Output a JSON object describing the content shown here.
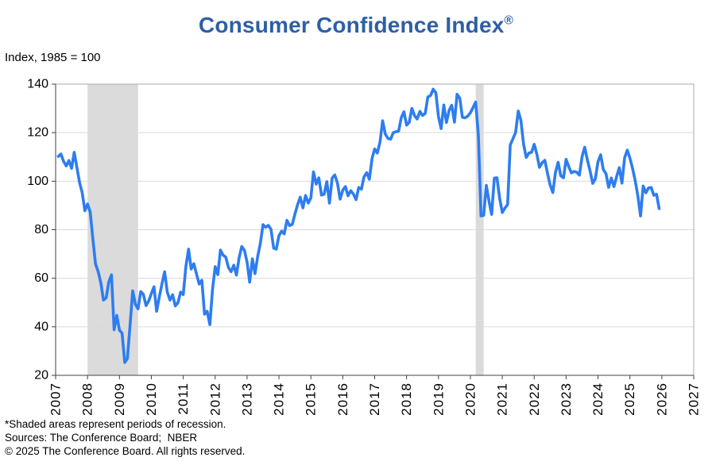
{
  "header": {
    "title": "Consumer Confidence Index",
    "registered": "®",
    "subtitle": "Index, 1985 = 100"
  },
  "footer": {
    "recession_note": "*Shaded areas represent periods of recession.",
    "sources": "Sources: The Conference Board;  NBER",
    "copyright": "© 2025 The Conference Board. All rights reserved."
  },
  "colors": {
    "title_blue": "#2D5FA5",
    "line_blue": "#2E7DF0",
    "recession_band": "#DBDBDB",
    "gridline": "#D9D9D9",
    "plot_border": "#ABABAB",
    "axis": "#404040",
    "label_text": "#000000"
  },
  "chart_data": {
    "type": "line",
    "title": "Consumer Confidence Index®",
    "ylabel": "Index, 1985 = 100",
    "xlabel": "",
    "xlim": [
      2007,
      2027
    ],
    "ylim": [
      20,
      140
    ],
    "x_ticks": [
      2007,
      2008,
      2009,
      2010,
      2011,
      2012,
      2013,
      2014,
      2015,
      2016,
      2017,
      2018,
      2019,
      2020,
      2021,
      2022,
      2023,
      2024,
      2025,
      2026,
      2027
    ],
    "y_ticks": [
      20,
      40,
      60,
      80,
      100,
      120,
      140
    ],
    "grid": "horizontal",
    "legend": "none",
    "recessions": [
      {
        "start": "2007-12",
        "end": "2009-06"
      },
      {
        "start": "2020-02",
        "end": "2020-04"
      }
    ],
    "series": [
      {
        "name": "Consumer Confidence Index",
        "frequency": "monthly",
        "start": "2007-01",
        "end": "2025-11",
        "values": [
          110.2,
          111.2,
          108.2,
          106.3,
          108.5,
          105.3,
          111.9,
          105.6,
          99.5,
          95.2,
          87.8,
          90.6,
          87.3,
          76.4,
          65.9,
          62.8,
          58.1,
          51.0,
          51.9,
          58.5,
          61.4,
          38.8,
          44.7,
          38.6,
          37.4,
          25.3,
          26.9,
          40.8,
          54.8,
          49.3,
          47.4,
          54.5,
          53.4,
          48.7,
          50.6,
          53.6,
          56.5,
          46.4,
          52.3,
          57.7,
          62.7,
          54.3,
          51.0,
          53.2,
          48.6,
          49.9,
          54.3,
          53.3,
          64.8,
          72.0,
          63.8,
          66.0,
          61.7,
          57.6,
          59.2,
          45.2,
          46.4,
          40.9,
          55.2,
          64.8,
          61.5,
          71.6,
          69.5,
          68.7,
          64.4,
          62.7,
          65.4,
          61.3,
          68.4,
          73.1,
          71.5,
          66.7,
          58.4,
          68.0,
          61.9,
          69.0,
          74.3,
          82.1,
          81.0,
          81.8,
          80.2,
          72.4,
          72.0,
          77.5,
          79.4,
          78.3,
          83.9,
          81.7,
          82.2,
          86.4,
          90.3,
          93.4,
          89.0,
          94.1,
          91.0,
          93.1,
          103.8,
          98.8,
          101.4,
          94.3,
          94.6,
          99.8,
          91.0,
          101.3,
          102.6,
          99.1,
          92.6,
          96.3,
          97.8,
          94.0,
          96.1,
          94.7,
          92.4,
          97.4,
          96.7,
          101.8,
          103.5,
          100.8,
          109.4,
          113.3,
          111.6,
          116.1,
          124.9,
          119.4,
          117.6,
          117.3,
          120.0,
          120.4,
          120.6,
          126.2,
          128.6,
          123.1,
          124.3,
          130.0,
          127.0,
          125.6,
          128.8,
          127.1,
          127.9,
          134.7,
          135.3,
          137.9,
          136.4,
          126.6,
          121.7,
          131.4,
          124.2,
          129.2,
          131.3,
          124.3,
          135.8,
          134.2,
          126.3,
          126.1,
          126.8,
          128.2,
          130.4,
          132.6,
          118.8,
          85.7,
          85.9,
          98.3,
          91.7,
          86.3,
          101.3,
          101.4,
          92.9,
          87.1,
          88.9,
          90.4,
          114.9,
          117.5,
          120.0,
          128.9,
          125.1,
          115.2,
          109.8,
          111.6,
          111.9,
          115.2,
          111.1,
          105.7,
          107.6,
          108.6,
          103.2,
          98.4,
          95.3,
          103.6,
          107.8,
          102.2,
          101.4,
          109.0,
          106.0,
          103.4,
          104.0,
          103.7,
          102.5,
          110.1,
          114.0,
          108.7,
          104.3,
          99.1,
          101.0,
          108.0,
          110.9,
          104.8,
          103.1,
          97.5,
          101.3,
          97.8,
          101.9,
          105.6,
          99.2,
          109.6,
          112.8,
          109.5,
          105.3,
          100.1,
          93.9,
          85.7,
          98.0,
          95.2,
          97.2,
          97.4,
          94.2,
          94.6,
          88.7
        ]
      }
    ]
  }
}
